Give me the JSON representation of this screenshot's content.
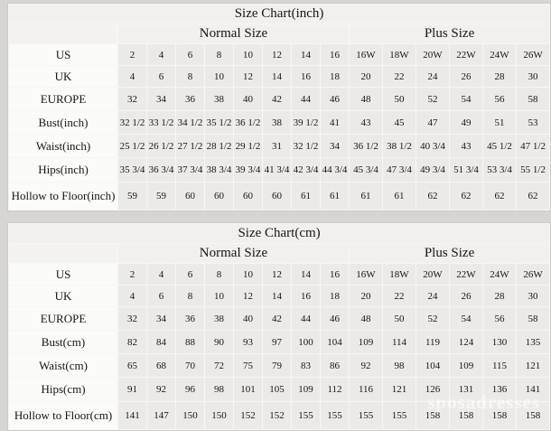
{
  "page": {
    "watermark": "sposadresses"
  },
  "colors": {
    "page_bg": "#d7d5d3",
    "grid_line": "#f7f6f5",
    "header_bg": "#f1f0ee",
    "label_col_bg": "#fbfbfa",
    "data_cell_bg": "#eceae8",
    "text": "#161616"
  },
  "chart_data": [
    {
      "type": "table",
      "title": "Size Chart(inch)",
      "group_headers": {
        "normal": "Normal Size",
        "plus": "Plus Size"
      },
      "rows": [
        {
          "label": "US",
          "normal": [
            "2",
            "4",
            "6",
            "8",
            "10",
            "12",
            "14",
            "16"
          ],
          "plus": [
            "16W",
            "18W",
            "20W",
            "22W",
            "24W",
            "26W"
          ]
        },
        {
          "label": "UK",
          "normal": [
            "4",
            "6",
            "8",
            "10",
            "12",
            "14",
            "16",
            "18"
          ],
          "plus": [
            "20",
            "22",
            "24",
            "26",
            "28",
            "30"
          ]
        },
        {
          "label": "EUROPE",
          "normal": [
            "32",
            "34",
            "36",
            "38",
            "40",
            "42",
            "44",
            "46"
          ],
          "plus": [
            "48",
            "50",
            "52",
            "54",
            "56",
            "58"
          ]
        },
        {
          "label": "Bust(inch)",
          "normal": [
            "32 1/2",
            "33 1/2",
            "34 1/2",
            "35 1/2",
            "36 1/2",
            "38",
            "39 1/2",
            "41"
          ],
          "plus": [
            "43",
            "45",
            "47",
            "49",
            "51",
            "53"
          ]
        },
        {
          "label": "Waist(inch)",
          "normal": [
            "25 1/2",
            "26 1/2",
            "27 1/2",
            "28 1/2",
            "29 1/2",
            "31",
            "32 1/2",
            "34"
          ],
          "plus": [
            "36 1/2",
            "38 1/2",
            "40 3/4",
            "43",
            "45 1/2",
            "47 1/2"
          ]
        },
        {
          "label": "Hips(inch)",
          "normal": [
            "35 3/4",
            "36 3/4",
            "37 3/4",
            "38 3/4",
            "39 3/4",
            "41 3/4",
            "42 3/4",
            "44 3/4"
          ],
          "plus": [
            "45 3/4",
            "47 3/4",
            "49 3/4",
            "51 3/4",
            "53 3/4",
            "55 1/2"
          ]
        },
        {
          "label": "Hollow to Floor(inch)",
          "normal": [
            "59",
            "59",
            "60",
            "60",
            "60",
            "60",
            "61",
            "61"
          ],
          "plus": [
            "61",
            "61",
            "62",
            "62",
            "62",
            "62"
          ]
        }
      ]
    },
    {
      "type": "table",
      "title": "Size Chart(cm)",
      "group_headers": {
        "normal": "Normal Size",
        "plus": "Plus Size"
      },
      "rows": [
        {
          "label": "US",
          "normal": [
            "2",
            "4",
            "6",
            "8",
            "10",
            "12",
            "14",
            "16"
          ],
          "plus": [
            "16W",
            "18W",
            "20W",
            "22W",
            "24W",
            "26W"
          ]
        },
        {
          "label": "UK",
          "normal": [
            "4",
            "6",
            "8",
            "10",
            "12",
            "14",
            "16",
            "18"
          ],
          "plus": [
            "20",
            "22",
            "24",
            "26",
            "28",
            "30"
          ]
        },
        {
          "label": "EUROPE",
          "normal": [
            "32",
            "34",
            "36",
            "38",
            "40",
            "42",
            "44",
            "46"
          ],
          "plus": [
            "48",
            "50",
            "52",
            "54",
            "56",
            "58"
          ]
        },
        {
          "label": "Bust(cm)",
          "normal": [
            "82",
            "84",
            "88",
            "90",
            "93",
            "97",
            "100",
            "104"
          ],
          "plus": [
            "109",
            "114",
            "119",
            "124",
            "130",
            "135"
          ]
        },
        {
          "label": "Waist(cm)",
          "normal": [
            "65",
            "68",
            "70",
            "72",
            "75",
            "79",
            "83",
            "86"
          ],
          "plus": [
            "92",
            "98",
            "104",
            "109",
            "115",
            "121"
          ]
        },
        {
          "label": "Hips(cm)",
          "normal": [
            "91",
            "92",
            "96",
            "98",
            "101",
            "105",
            "109",
            "112"
          ],
          "plus": [
            "116",
            "121",
            "126",
            "131",
            "136",
            "141"
          ]
        },
        {
          "label": "Hollow to Floor(cm)",
          "normal": [
            "141",
            "147",
            "150",
            "150",
            "152",
            "152",
            "155",
            "155"
          ],
          "plus": [
            "155",
            "155",
            "158",
            "158",
            "158",
            "158"
          ]
        }
      ]
    }
  ]
}
